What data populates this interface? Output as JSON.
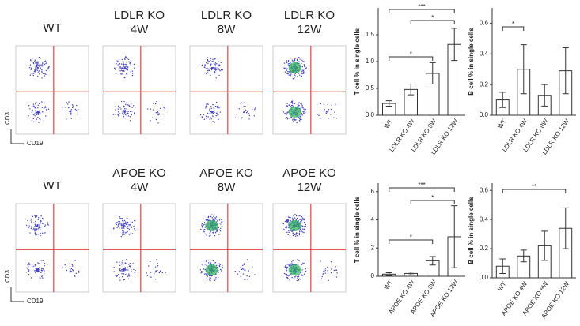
{
  "panel_rows": [
    {
      "labels": [
        "WT",
        "LDLR KO\n4W",
        "LDLR KO\n8W",
        "LDLR KO\n12W"
      ]
    },
    {
      "labels": [
        "WT",
        "APOE KO\n4W",
        "APOE KO\n8W",
        "APOE KO\n12W"
      ]
    }
  ],
  "flow_axes": {
    "y": "CD3",
    "x": "CD19"
  },
  "chart_data": [
    {
      "type": "bar",
      "ylabel": "T cell % in single cells",
      "categories": [
        "WT",
        "LDLR KO 4W",
        "LDLR KO 8W",
        "LDLR KO 12W"
      ],
      "values": [
        0.22,
        0.48,
        0.78,
        1.32
      ],
      "errors": [
        0.05,
        0.1,
        0.2,
        0.3
      ],
      "ylim": [
        0,
        2
      ],
      "yticks": [
        {
          "value": 0,
          "label": "0.0"
        },
        {
          "value": 0.5,
          "label": "0.5"
        },
        {
          "value": 1,
          "label": "1.0"
        },
        {
          "value": 1.5,
          "label": "1.5"
        }
      ],
      "annotations": [
        "***",
        "*",
        "*"
      ]
    },
    {
      "type": "bar",
      "ylabel": "B cell % in single cells",
      "categories": [
        "WT",
        "LDLR KO 4W",
        "LDLR KO 8W",
        "LDLR KO 12W"
      ],
      "values": [
        0.1,
        0.3,
        0.13,
        0.29
      ],
      "errors": [
        0.05,
        0.16,
        0.07,
        0.15
      ],
      "ylim": [
        0,
        0.7
      ],
      "yticks": [
        {
          "value": 0,
          "label": "0.0"
        },
        {
          "value": 0.2,
          "label": "0.2"
        },
        {
          "value": 0.4,
          "label": "0.4"
        },
        {
          "value": 0.6,
          "label": "0.6"
        }
      ],
      "annotations": [
        "*"
      ]
    },
    {
      "type": "bar",
      "ylabel": "T cell % in single cells",
      "categories": [
        "WT",
        "APOE KO 4W",
        "APOE KO 8W",
        "APOE KO 12W"
      ],
      "values": [
        0.15,
        0.2,
        1.1,
        2.8
      ],
      "errors": [
        0.1,
        0.1,
        0.3,
        2.2
      ],
      "ylim": [
        0,
        6.6
      ],
      "yticks": [
        0,
        2,
        4,
        6
      ],
      "annotations": [
        "***",
        "*",
        "*"
      ]
    },
    {
      "type": "bar",
      "ylabel": "B cell % in single cells",
      "categories": [
        "WT",
        "APOE KO 4W",
        "APOE KO 8W",
        "APOE KO 12W"
      ],
      "values": [
        0.08,
        0.15,
        0.22,
        0.34
      ],
      "errors": [
        0.05,
        0.04,
        0.1,
        0.14
      ],
      "ylim": [
        0,
        0.65
      ],
      "yticks": [
        {
          "value": 0,
          "label": "0.0"
        },
        {
          "value": 0.2,
          "label": "0.2"
        },
        {
          "value": 0.4,
          "label": "0.4"
        },
        {
          "value": 0.6,
          "label": "0.6"
        }
      ],
      "annotations": [
        "**"
      ]
    }
  ]
}
